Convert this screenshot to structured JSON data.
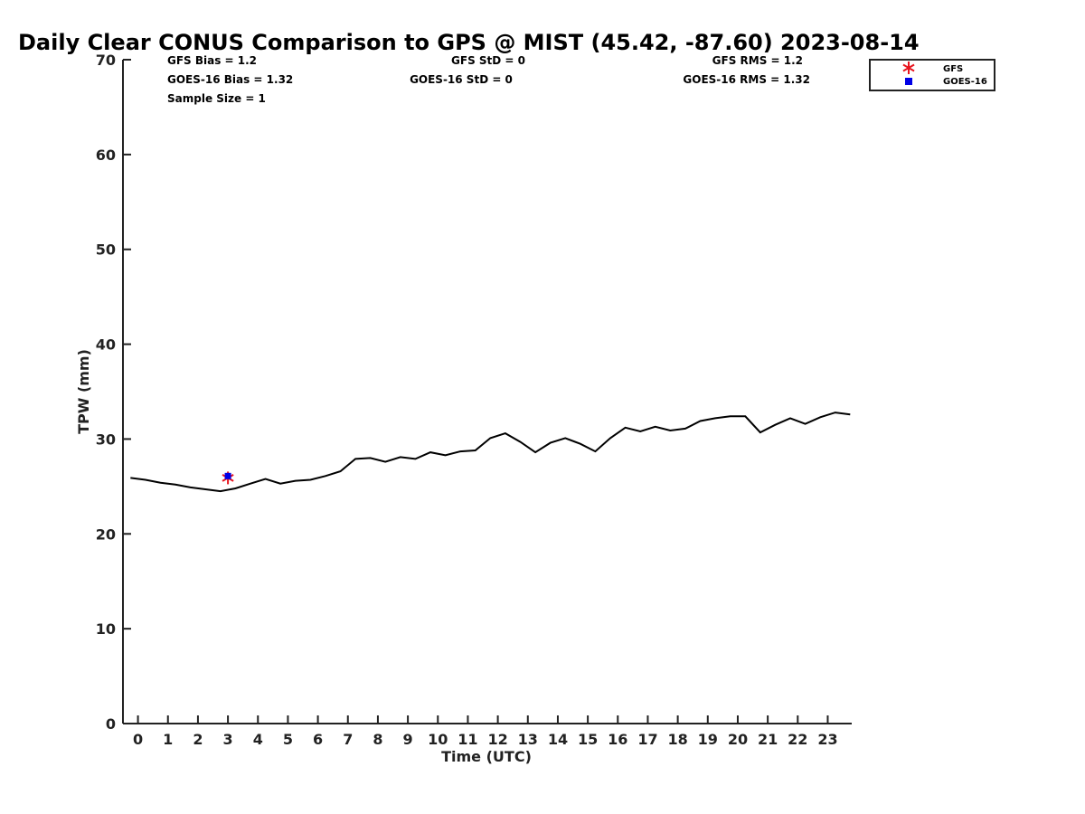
{
  "chart_data": {
    "type": "line",
    "title": "Daily Clear CONUS Comparison to GPS @ MIST (45.42, -87.60) 2023-08-14",
    "xlabel": "Time (UTC)",
    "ylabel": "TPW (mm)",
    "xlim": [
      -0.5,
      23.8
    ],
    "ylim": [
      0,
      70
    ],
    "x_ticks": [
      "0",
      "1",
      "2",
      "3",
      "4",
      "5",
      "6",
      "7",
      "8",
      "9",
      "10",
      "11",
      "12",
      "13",
      "14",
      "15",
      "16",
      "17",
      "18",
      "19",
      "20",
      "21",
      "22",
      "23"
    ],
    "y_ticks": [
      "0",
      "10",
      "20",
      "30",
      "40",
      "50",
      "60",
      "70"
    ],
    "grid": false,
    "legend_position": "top-right",
    "stats": {
      "gfs_bias": "GFS Bias = 1.2",
      "goes_bias": "GOES-16 Bias = 1.32",
      "sample_size": "Sample Size = 1",
      "gfs_std": "GFS StD = 0",
      "goes_std": "GOES-16 StD = 0",
      "gfs_rms": "GFS RMS = 1.2",
      "goes_rms": "GOES-16 RMS = 1.32"
    },
    "series": [
      {
        "name": "GPS",
        "type": "line",
        "color": "#000000",
        "x": [
          -0.25,
          0.25,
          0.75,
          1.25,
          1.75,
          2.25,
          2.75,
          3.25,
          3.75,
          4.25,
          4.75,
          5.25,
          5.75,
          6.25,
          6.75,
          7.25,
          7.75,
          8.25,
          8.75,
          9.25,
          9.75,
          10.25,
          10.75,
          11.25,
          11.75,
          12.25,
          12.75,
          13.25,
          13.75,
          14.25,
          14.75,
          15.25,
          15.75,
          16.25,
          16.75,
          17.25,
          17.75,
          18.25,
          18.75,
          19.25,
          19.75,
          20.25,
          20.75,
          21.25,
          21.75,
          22.25,
          22.75,
          23.25,
          23.75
        ],
        "y": [
          25.9,
          25.7,
          25.4,
          25.2,
          24.9,
          24.7,
          24.5,
          24.8,
          25.3,
          25.8,
          25.3,
          25.6,
          25.7,
          26.1,
          26.6,
          27.9,
          28.0,
          27.6,
          28.1,
          27.9,
          28.6,
          28.3,
          28.7,
          28.8,
          30.1,
          30.6,
          29.7,
          28.6,
          29.6,
          30.1,
          29.5,
          28.7,
          30.1,
          31.2,
          30.8,
          31.3,
          30.9,
          31.1,
          31.9,
          32.2,
          32.4,
          32.4,
          30.7,
          31.5,
          32.2,
          31.6,
          32.3,
          32.8,
          32.6
        ]
      },
      {
        "name": "GFS",
        "type": "scatter",
        "marker": "asterisk",
        "color": "#e8141e",
        "x": [
          3.0
        ],
        "y": [
          25.9
        ]
      },
      {
        "name": "GOES-16",
        "type": "scatter",
        "marker": "square",
        "color": "#0000e6",
        "x": [
          3.0
        ],
        "y": [
          26.1
        ]
      }
    ],
    "legend": [
      {
        "label": "GFS",
        "color": "#e8141e",
        "marker": "asterisk"
      },
      {
        "label": "GOES-16",
        "color": "#0000e6",
        "marker": "square"
      }
    ]
  }
}
